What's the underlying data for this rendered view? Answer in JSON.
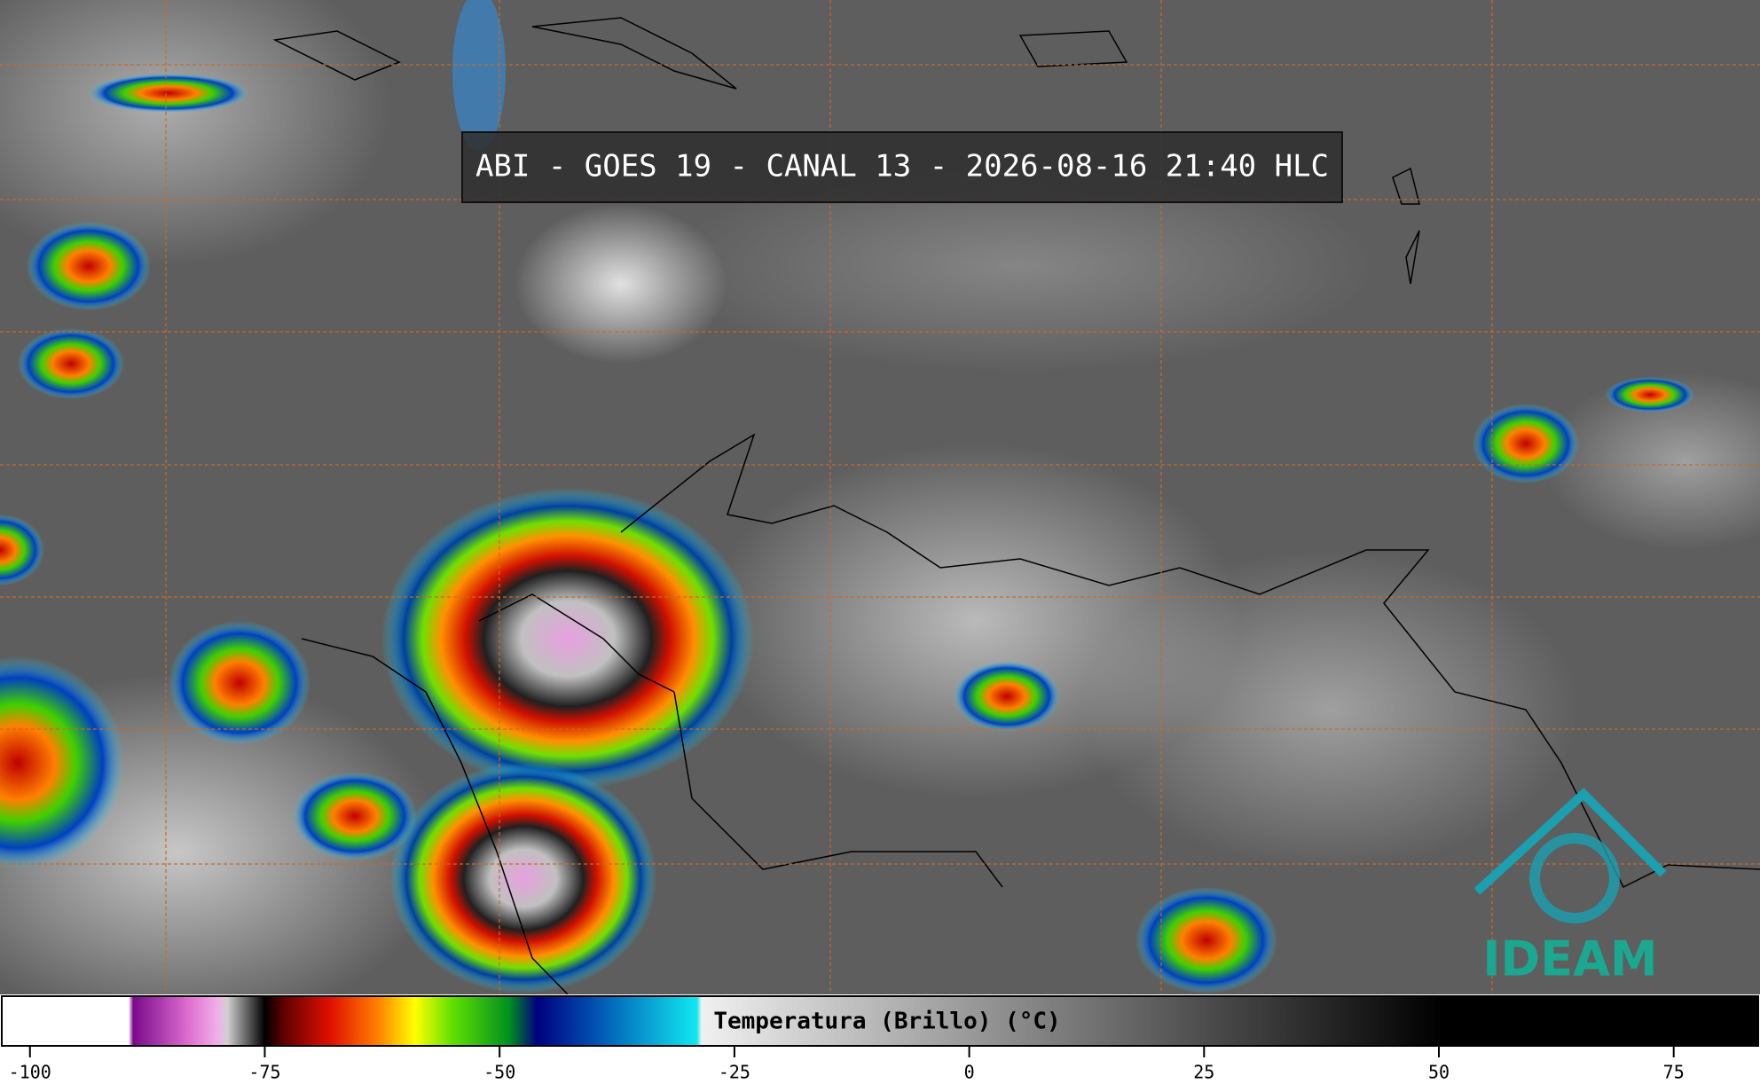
{
  "title": "ABI - GOES 19 - CANAL 13 - 2026-08-16 21:40 HLC",
  "logo": "IDEAM",
  "colorbar": {
    "label": "Temperatura (Brillo) (°C)",
    "lim": [
      -103,
      84
    ],
    "ticks": [
      -100,
      -75,
      -50,
      -25,
      0,
      25,
      50,
      75
    ],
    "colorscale": [
      [
        -103,
        "#ffffff"
      ],
      [
        -89.5,
        "#ffffff"
      ],
      [
        -89,
        "#7a0a8c"
      ],
      [
        -83,
        "#e070d0"
      ],
      [
        -80,
        "#f0b0e8"
      ],
      [
        -79,
        "#d0d0d0"
      ],
      [
        -75,
        "#000000"
      ],
      [
        -73,
        "#600000"
      ],
      [
        -68,
        "#e01000"
      ],
      [
        -63,
        "#ff8000"
      ],
      [
        -59,
        "#ffff00"
      ],
      [
        -55,
        "#60e000"
      ],
      [
        -49,
        "#009020"
      ],
      [
        -46,
        "#000080"
      ],
      [
        -40,
        "#0050b0"
      ],
      [
        -29,
        "#10e8f0"
      ],
      [
        -28.5,
        "#f0f0f0"
      ],
      [
        50.5,
        "#000000"
      ],
      [
        84,
        "#000000"
      ]
    ]
  }
}
